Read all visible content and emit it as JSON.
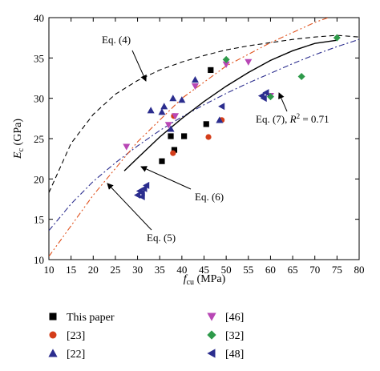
{
  "chart_data": {
    "type": "scatter",
    "xlabel_main": "f",
    "xlabel_sub": "cu",
    "xlabel_unit": " (MPa)",
    "ylabel_main": "E",
    "ylabel_sub": "c",
    "ylabel_unit": " (GPa)",
    "xlim": [
      10,
      80
    ],
    "ylim": [
      10,
      40
    ],
    "xticks": [
      10,
      15,
      20,
      25,
      30,
      35,
      40,
      45,
      50,
      55,
      60,
      65,
      70,
      75,
      80
    ],
    "yticks": [
      10,
      15,
      20,
      25,
      30,
      35,
      40
    ],
    "grid": false,
    "legend_position": "below",
    "series": [
      {
        "name": "This paper",
        "marker": "square",
        "color": "#000000",
        "points": [
          [
            35.5,
            22.2
          ],
          [
            37.5,
            25.3
          ],
          [
            38.3,
            23.6
          ],
          [
            40.5,
            25.3
          ],
          [
            45.5,
            26.8
          ],
          [
            46.5,
            33.5
          ]
        ]
      },
      {
        "name": "[23]",
        "marker": "circle",
        "color": "#d43d1a",
        "points": [
          [
            38.0,
            23.2
          ],
          [
            38.2,
            27.8
          ],
          [
            46.0,
            25.2
          ],
          [
            49.0,
            27.3
          ]
        ]
      },
      {
        "name": "[22]",
        "marker": "triangle-up",
        "color": "#2b2d8e",
        "points": [
          [
            33.0,
            28.5
          ],
          [
            35.5,
            28.3
          ],
          [
            36.0,
            29.0
          ],
          [
            38.0,
            30.0
          ],
          [
            40.0,
            29.8
          ],
          [
            43.0,
            32.3
          ],
          [
            37.5,
            26.2
          ],
          [
            48.5,
            27.3
          ]
        ]
      },
      {
        "name": "[46]",
        "marker": "triangle-down",
        "color": "#b847b5",
        "points": [
          [
            27.5,
            24.0
          ],
          [
            37.0,
            26.7
          ],
          [
            38.5,
            27.8
          ],
          [
            43.0,
            31.5
          ],
          [
            50.0,
            34.2
          ],
          [
            55.0,
            34.5
          ],
          [
            60.0,
            30.3
          ]
        ]
      },
      {
        "name": "[32]",
        "marker": "diamond",
        "color": "#2e9a4a",
        "points": [
          [
            50.0,
            34.8
          ],
          [
            60.0,
            30.2
          ],
          [
            67.0,
            32.7
          ],
          [
            75.0,
            37.5
          ]
        ]
      },
      {
        "name": "[48]",
        "marker": "triangle-left",
        "color": "#2b2d8e",
        "points": [
          [
            30.0,
            18.0
          ],
          [
            30.5,
            18.5
          ],
          [
            31.0,
            18.3
          ],
          [
            31.5,
            18.8
          ],
          [
            32.0,
            19.2
          ],
          [
            31.0,
            17.8
          ],
          [
            49.0,
            29.0
          ],
          [
            58.0,
            30.3
          ],
          [
            59.0,
            30.7
          ],
          [
            58.5,
            30.0
          ]
        ]
      }
    ],
    "curves": [
      {
        "label": "Eq. (4)",
        "style": "dashed",
        "color": "#000000",
        "points": [
          [
            10,
            18.3
          ],
          [
            15,
            24.4
          ],
          [
            20,
            28.0
          ],
          [
            25,
            30.5
          ],
          [
            30,
            32.2
          ],
          [
            35,
            33.5
          ],
          [
            40,
            34.5
          ],
          [
            45,
            35.3
          ],
          [
            50,
            36.0
          ],
          [
            55,
            36.5
          ],
          [
            60,
            36.9
          ],
          [
            65,
            37.3
          ],
          [
            70,
            37.6
          ],
          [
            75,
            37.8
          ],
          [
            80,
            37.6
          ]
        ]
      },
      {
        "label": "Eq. (5)",
        "style": "dashdot",
        "color": "#2b2d8e",
        "points": [
          [
            10,
            13.6
          ],
          [
            15,
            16.9
          ],
          [
            20,
            19.7
          ],
          [
            25,
            22.0
          ],
          [
            30,
            24.1
          ],
          [
            35,
            26.0
          ],
          [
            40,
            27.7
          ],
          [
            45,
            29.2
          ],
          [
            50,
            30.6
          ],
          [
            55,
            31.9
          ],
          [
            60,
            33.1
          ],
          [
            65,
            34.3
          ],
          [
            70,
            35.4
          ],
          [
            75,
            36.4
          ],
          [
            80,
            37.3
          ]
        ]
      },
      {
        "label": "Eq. (6)",
        "style": "solid",
        "color": "#000000",
        "points": [
          [
            27,
            21.0
          ],
          [
            30,
            22.6
          ],
          [
            35,
            25.2
          ],
          [
            40,
            27.5
          ],
          [
            45,
            29.6
          ],
          [
            50,
            31.5
          ],
          [
            55,
            33.2
          ],
          [
            60,
            34.7
          ],
          [
            65,
            35.9
          ],
          [
            70,
            36.8
          ],
          [
            75,
            37.2
          ]
        ]
      },
      {
        "label": "Eq. (7), R² = 0.71",
        "style": "dashdotdot",
        "color": "#e0531f",
        "points": [
          [
            10,
            10.4
          ],
          [
            20,
            18.0
          ],
          [
            30,
            24.6
          ],
          [
            40,
            30.0
          ],
          [
            50,
            34.0
          ],
          [
            60,
            36.9
          ],
          [
            70,
            39.4
          ],
          [
            75,
            40.4
          ]
        ]
      }
    ],
    "annotations": [
      {
        "text": "Eq. (4)"
      },
      {
        "text": "Eq. (6)"
      },
      {
        "text": "Eq. (5)"
      },
      {
        "text_main": "Eq. (7), ",
        "text_r": "R",
        "text_sup": "2",
        "text_rest": " = 0.71"
      }
    ]
  }
}
